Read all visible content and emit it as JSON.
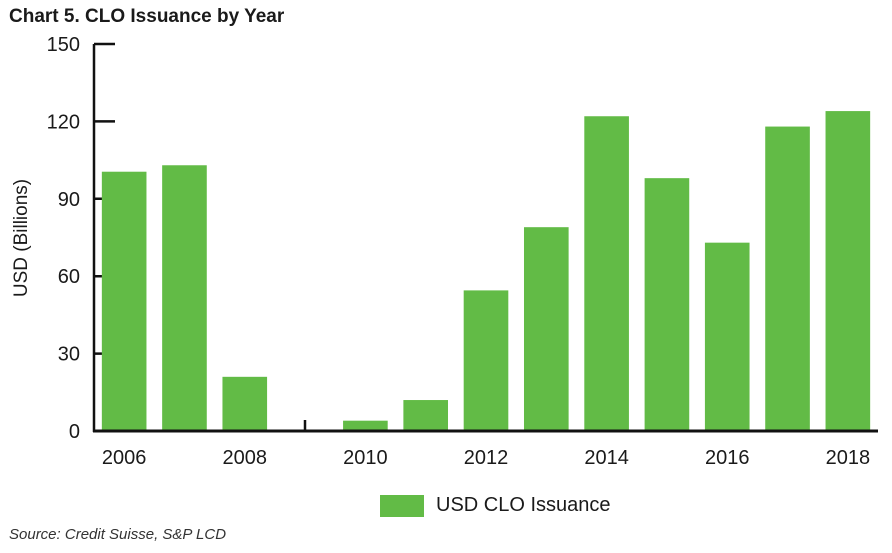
{
  "chart_data": {
    "type": "bar",
    "title": "Chart 5. CLO Issuance by Year",
    "xlabel": "",
    "ylabel": "USD (Billions)",
    "ylim": [
      0,
      150
    ],
    "yticks": [
      0,
      30,
      60,
      90,
      120,
      150
    ],
    "categories": [
      "2006",
      "2007",
      "2008",
      "2009",
      "2010",
      "2011",
      "2012",
      "2013",
      "2014",
      "2015",
      "2016",
      "2017",
      "2018"
    ],
    "xtick_labels": [
      "2006",
      "",
      "2008",
      "",
      "2010",
      "",
      "2012",
      "",
      "2014",
      "",
      "2016",
      "",
      "2018"
    ],
    "series": [
      {
        "name": "USD CLO Issuance",
        "color": "#62bb46",
        "values": [
          100.5,
          103,
          21,
          0.5,
          4,
          12,
          54.5,
          79,
          122,
          98,
          73,
          118,
          124
        ]
      }
    ],
    "legend": {
      "label": "USD CLO Issuance",
      "placement": "bottom-center"
    },
    "grid": false,
    "source": "Source: Credit Suisse, S&P LCD"
  }
}
